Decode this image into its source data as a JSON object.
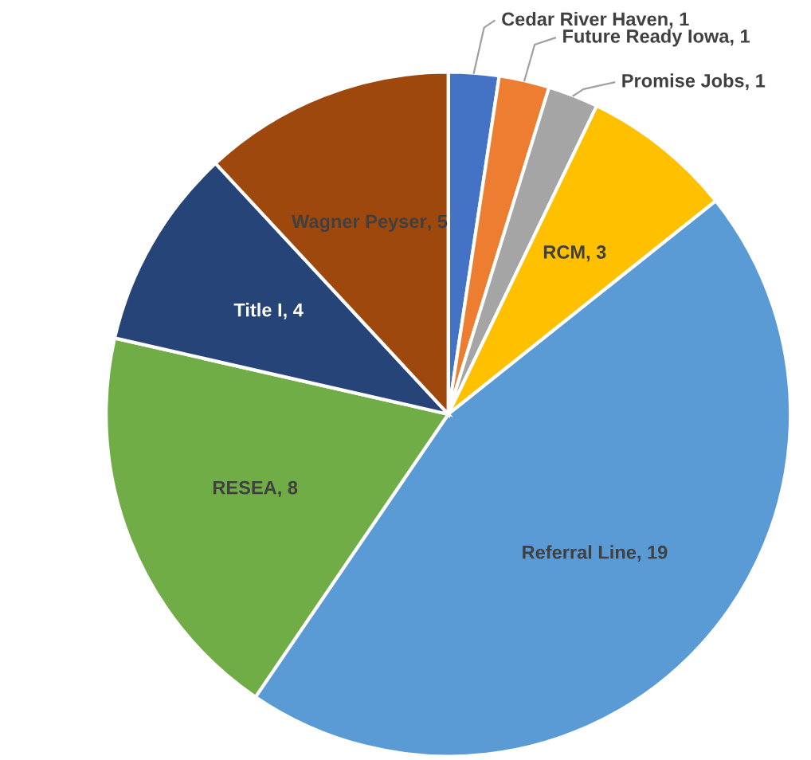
{
  "chart_data": {
    "type": "pie",
    "categories": [
      "Cedar River Haven",
      "Future Ready Iowa",
      "Promise Jobs",
      "RCM",
      "Referral Line",
      "RESEA",
      "Title I",
      "Wagner Peyser"
    ],
    "values": [
      1,
      1,
      1,
      3,
      19,
      8,
      4,
      5
    ],
    "colors": [
      "#4472c4",
      "#ed7d31",
      "#a5a5a5",
      "#ffc000",
      "#5b9bd5",
      "#70ad47",
      "#264478",
      "#9e480e"
    ],
    "value_labels": [
      ", 1",
      ", 1",
      ", 1",
      ", 3",
      ", 19",
      ", 8",
      ", 4",
      ", 5"
    ],
    "legend": false
  }
}
